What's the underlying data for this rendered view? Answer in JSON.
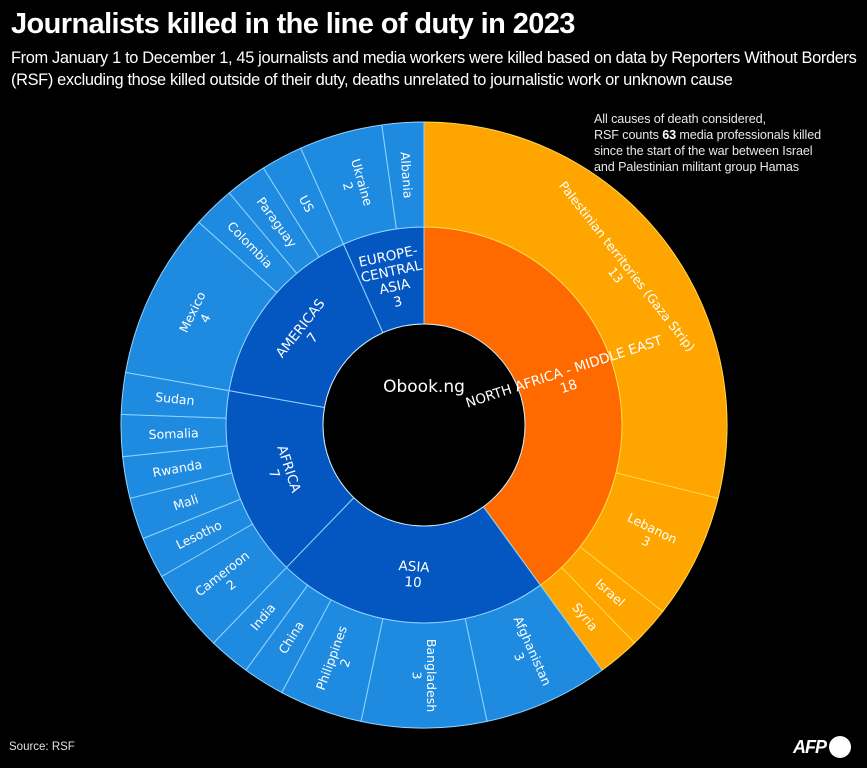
{
  "title": "Journalists killed in the line of duty in 2023",
  "subtitle": "From January 1 to December 1, 45 journalists and media workers were killed based on data by Reporters Without Borders (RSF) excluding those killed outside of their duty, deaths unrelated to journalistic work or unknown cause",
  "note": {
    "line1": "All causes of death considered,",
    "line2_pre": "RSF counts ",
    "line2_bold": "63",
    "line2_post": " media professionals killed",
    "line3": "since the start of the war between Israel",
    "line4": "and Palestinian militant group Hamas"
  },
  "watermark": "Obook.ng",
  "source": "Source: RSF",
  "logo": "AFP",
  "colors": {
    "name_inner": "#ff6a00",
    "name_outer": "#ffa500",
    "other_inner": "#0456c0",
    "other_outer": "#1e8ae0",
    "name_border": "#ffd84a",
    "other_border": "#8fd4ff",
    "background": "#000000"
  },
  "chart_data": {
    "type": "sunburst",
    "title": "Journalists killed in the line of duty in 2023",
    "total": 45,
    "start": "top",
    "direction": "clockwise",
    "regions": [
      {
        "name": "NORTH AFRICA - MIDDLE EAST",
        "value": 18,
        "highlight": true,
        "countries": [
          {
            "name": "Palestinian territories (Gaza Strip)",
            "value": 13
          },
          {
            "name": "Lebanon",
            "value": 3
          },
          {
            "name": "Israel",
            "value": 1
          },
          {
            "name": "Syria",
            "value": 1
          }
        ]
      },
      {
        "name": "ASIA",
        "value": 10,
        "highlight": false,
        "countries": [
          {
            "name": "Afghanistan",
            "value": 3
          },
          {
            "name": "Bangladesh",
            "value": 3
          },
          {
            "name": "Philippines",
            "value": 2
          },
          {
            "name": "China",
            "value": 1
          },
          {
            "name": "India",
            "value": 1
          }
        ]
      },
      {
        "name": "AFRICA",
        "value": 7,
        "highlight": false,
        "countries": [
          {
            "name": "Cameroon",
            "value": 2
          },
          {
            "name": "Lesotho",
            "value": 1
          },
          {
            "name": "Mali",
            "value": 1
          },
          {
            "name": "Rwanda",
            "value": 1
          },
          {
            "name": "Somalia",
            "value": 1
          },
          {
            "name": "Sudan",
            "value": 1
          }
        ]
      },
      {
        "name": "AMERICAS",
        "value": 7,
        "highlight": false,
        "countries": [
          {
            "name": "Mexico",
            "value": 4
          },
          {
            "name": "Colombia",
            "value": 1
          },
          {
            "name": "Paraguay",
            "value": 1
          },
          {
            "name": "US",
            "value": 1
          }
        ]
      },
      {
        "name": "EUROPE-CENTRAL ASIA",
        "value": 3,
        "highlight": false,
        "countries": [
          {
            "name": "Ukraine",
            "value": 2
          },
          {
            "name": "Albania",
            "value": 1
          }
        ]
      }
    ]
  }
}
